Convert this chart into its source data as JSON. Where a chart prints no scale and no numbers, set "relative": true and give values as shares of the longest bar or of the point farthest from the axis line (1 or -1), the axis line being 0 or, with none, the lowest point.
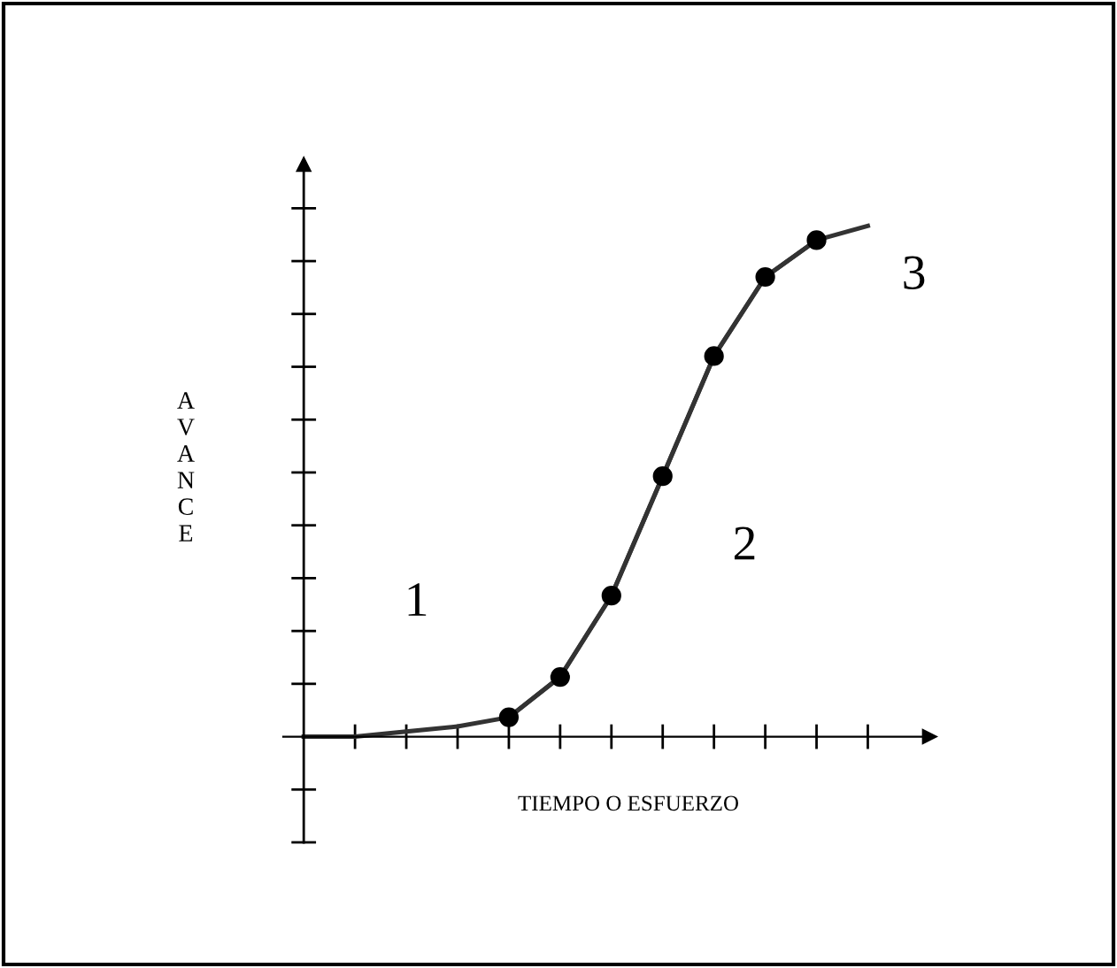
{
  "chart_data": {
    "type": "line",
    "relative": true,
    "xlabel": "TIEMPO O ESFUERZO",
    "ylabel": "AVANCE",
    "categories": [
      null,
      null,
      null,
      null,
      null,
      null,
      null,
      null,
      null,
      null,
      null,
      null
    ],
    "series": [
      {
        "color": "#333333",
        "values": [
          0,
          0,
          0.01,
          0.02,
          0.038,
          0.117,
          0.276,
          0.51,
          0.745,
          0.9,
          0.972,
          1.0
        ]
      },
      {
        "type": "line",
        "color": "#333333",
        "marker": "circle",
        "values": [
          null,
          null,
          null,
          null,
          0.038,
          0.117,
          0.276,
          0.51,
          0.745,
          0.9,
          0.972,
          null
        ]
      }
    ],
    "annotations": [
      "1",
      "2",
      "3"
    ],
    "grid": false,
    "legend": false
  }
}
